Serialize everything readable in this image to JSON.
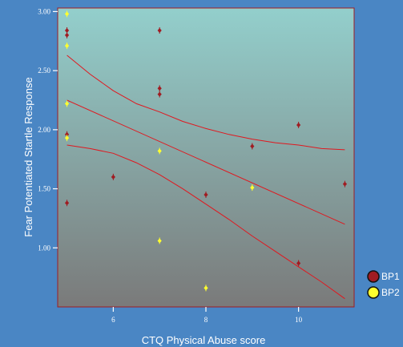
{
  "chart_data": {
    "type": "scatter",
    "xlabel": "CTQ Physical Abuse score",
    "ylabel": "Fear Potentiated Startle Response",
    "xlim": [
      4.8,
      11.2
    ],
    "ylim": [
      0.5,
      3.03
    ],
    "x_ticks": [
      6,
      8,
      10
    ],
    "y_ticks": [
      1.0,
      1.5,
      2.0,
      2.5,
      3.0
    ],
    "x_tick_labels": [
      "6",
      "8",
      "10"
    ],
    "y_tick_labels": [
      "1.00",
      "1.50",
      "2.00",
      "2.50",
      "3.00"
    ],
    "legend_position": "bottom-right",
    "series": [
      {
        "name": "BP1",
        "color": "#a01c22",
        "points": [
          [
            5,
            2.84
          ],
          [
            5,
            2.8
          ],
          [
            5,
            1.96
          ],
          [
            5,
            1.38
          ],
          [
            6,
            1.6
          ],
          [
            7,
            2.84
          ],
          [
            7,
            2.35
          ],
          [
            7,
            2.3
          ],
          [
            8,
            1.45
          ],
          [
            9,
            1.86
          ],
          [
            10,
            2.04
          ],
          [
            10,
            0.87
          ],
          [
            11,
            1.54
          ]
        ]
      },
      {
        "name": "BP2",
        "color": "#ffff2e",
        "points": [
          [
            5,
            2.98
          ],
          [
            5,
            2.71
          ],
          [
            5,
            2.22
          ],
          [
            5,
            1.93
          ],
          [
            7,
            1.82
          ],
          [
            7,
            1.06
          ],
          [
            8,
            0.66
          ],
          [
            9,
            1.51
          ]
        ]
      }
    ],
    "fit_line": {
      "x": [
        5,
        11
      ],
      "y": [
        2.25,
        1.2
      ],
      "color": "#e0181f"
    },
    "confidence_band_upper": {
      "x": [
        5,
        5.5,
        6,
        6.5,
        7,
        7.5,
        8,
        8.5,
        9,
        9.5,
        10,
        10.5,
        11
      ],
      "y": [
        2.63,
        2.47,
        2.33,
        2.22,
        2.15,
        2.07,
        2.01,
        1.96,
        1.92,
        1.89,
        1.87,
        1.84,
        1.83
      ]
    },
    "confidence_band_lower": {
      "x": [
        5,
        5.5,
        6,
        6.5,
        7,
        7.5,
        8,
        8.5,
        9,
        9.5,
        10,
        10.5,
        11
      ],
      "y": [
        1.87,
        1.84,
        1.8,
        1.72,
        1.62,
        1.5,
        1.37,
        1.24,
        1.1,
        0.97,
        0.84,
        0.71,
        0.57
      ]
    },
    "plot_background_top": "#93cfcc",
    "plot_background_bottom": "#7a7a7a",
    "plot_border_color": "#a01c22"
  }
}
